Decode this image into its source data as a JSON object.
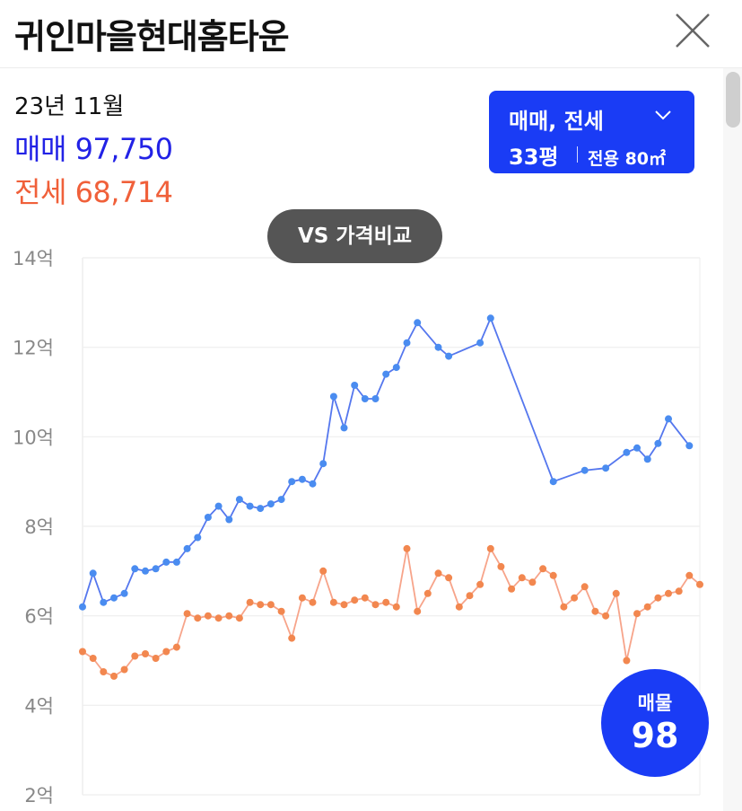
{
  "header": {
    "title": "귀인마을현대홈타운",
    "close_icon": "close-icon"
  },
  "summary": {
    "date": "23년 11월",
    "sale_label": "매매",
    "sale_value": "97,750",
    "jeonse_label": "전세",
    "jeonse_value": "68,714"
  },
  "filter": {
    "type": "매매, 전세",
    "size": "33평",
    "area": "전용 80㎡",
    "chevron_icon": "chevron-down-icon"
  },
  "vs_button": {
    "label": "VS 가격비교"
  },
  "listing_button": {
    "label": "매물",
    "count": "98"
  },
  "colors": {
    "sale": "#5577ee",
    "sale_point": "#4a8cf0",
    "jeonse": "#f7a48a",
    "jeonse_point": "#f2874f",
    "accent": "#1a3cf5",
    "grid": "#eeeeee"
  },
  "chart_data": {
    "type": "line",
    "ylim": [
      2,
      14
    ],
    "y_ticks": [
      "2억",
      "4억",
      "6억",
      "8억",
      "10억",
      "12억",
      "14억"
    ],
    "y_tick_values": [
      2,
      4,
      6,
      8,
      10,
      12,
      14
    ],
    "xlim": [
      0,
      59
    ],
    "grid": true,
    "series": [
      {
        "key": "sale",
        "points": [
          [
            0,
            6.2
          ],
          [
            1,
            6.95
          ],
          [
            2,
            6.3
          ],
          [
            3,
            6.4
          ],
          [
            4,
            6.5
          ],
          [
            5,
            7.05
          ],
          [
            6,
            7.0
          ],
          [
            7,
            7.05
          ],
          [
            8,
            7.2
          ],
          [
            9,
            7.2
          ],
          [
            10,
            7.5
          ],
          [
            11,
            7.75
          ],
          [
            12,
            8.2
          ],
          [
            13,
            8.45
          ],
          [
            14,
            8.15
          ],
          [
            15,
            8.6
          ],
          [
            16,
            8.45
          ],
          [
            17,
            8.4
          ],
          [
            18,
            8.5
          ],
          [
            19,
            8.6
          ],
          [
            20,
            9.0
          ],
          [
            21,
            9.05
          ],
          [
            22,
            8.95
          ],
          [
            23,
            9.4
          ],
          [
            24,
            10.9
          ],
          [
            25,
            10.2
          ],
          [
            26,
            11.15
          ],
          [
            27,
            10.85
          ],
          [
            28,
            10.85
          ],
          [
            29,
            11.4
          ],
          [
            30,
            11.55
          ],
          [
            31,
            12.1
          ],
          [
            32,
            12.55
          ],
          [
            34,
            12.0
          ],
          [
            35,
            11.8
          ],
          [
            38,
            12.1
          ],
          [
            39,
            12.65
          ],
          [
            45,
            9.0
          ],
          [
            48,
            9.25
          ],
          [
            50,
            9.3
          ],
          [
            52,
            9.65
          ],
          [
            53,
            9.75
          ],
          [
            54,
            9.5
          ],
          [
            55,
            9.85
          ],
          [
            56,
            10.4
          ],
          [
            58,
            9.8
          ]
        ]
      },
      {
        "key": "jeonse",
        "points": [
          [
            0,
            5.2
          ],
          [
            1,
            5.05
          ],
          [
            2,
            4.75
          ],
          [
            3,
            4.65
          ],
          [
            4,
            4.8
          ],
          [
            5,
            5.1
          ],
          [
            6,
            5.15
          ],
          [
            7,
            5.05
          ],
          [
            8,
            5.2
          ],
          [
            9,
            5.3
          ],
          [
            10,
            6.05
          ],
          [
            11,
            5.95
          ],
          [
            12,
            6.0
          ],
          [
            13,
            5.95
          ],
          [
            14,
            6.0
          ],
          [
            15,
            5.95
          ],
          [
            16,
            6.3
          ],
          [
            17,
            6.25
          ],
          [
            18,
            6.25
          ],
          [
            19,
            6.1
          ],
          [
            20,
            5.5
          ],
          [
            21,
            6.4
          ],
          [
            22,
            6.3
          ],
          [
            23,
            7.0
          ],
          [
            24,
            6.3
          ],
          [
            25,
            6.25
          ],
          [
            26,
            6.35
          ],
          [
            27,
            6.4
          ],
          [
            28,
            6.25
          ],
          [
            29,
            6.3
          ],
          [
            30,
            6.2
          ],
          [
            31,
            7.5
          ],
          [
            32,
            6.1
          ],
          [
            33,
            6.5
          ],
          [
            34,
            6.95
          ],
          [
            35,
            6.85
          ],
          [
            36,
            6.2
          ],
          [
            37,
            6.45
          ],
          [
            38,
            6.7
          ],
          [
            39,
            7.5
          ],
          [
            40,
            7.1
          ],
          [
            41,
            6.6
          ],
          [
            42,
            6.85
          ],
          [
            43,
            6.75
          ],
          [
            44,
            7.05
          ],
          [
            45,
            6.9
          ],
          [
            46,
            6.2
          ],
          [
            47,
            6.4
          ],
          [
            48,
            6.65
          ],
          [
            49,
            6.1
          ],
          [
            50,
            6.0
          ],
          [
            51,
            6.5
          ],
          [
            52,
            5.0
          ],
          [
            53,
            6.05
          ],
          [
            54,
            6.2
          ],
          [
            55,
            6.4
          ],
          [
            56,
            6.5
          ],
          [
            57,
            6.55
          ],
          [
            58,
            6.9
          ],
          [
            59,
            6.7
          ]
        ]
      }
    ]
  }
}
